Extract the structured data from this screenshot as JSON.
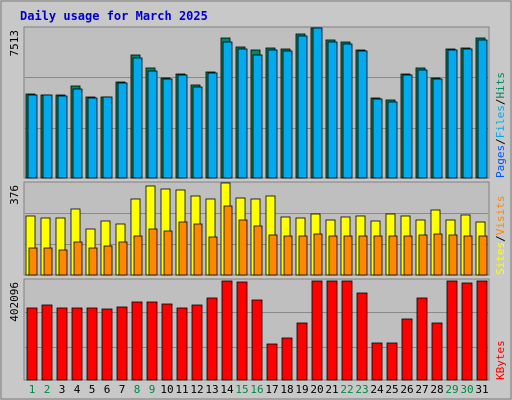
{
  "title": "Daily usage for March 2025",
  "colors": {
    "pages": "#0055ff",
    "files": "#00aaee",
    "hits": "#008866",
    "visits": "#ff8800",
    "sites": "#ffff00",
    "kbytes": "#ff0000",
    "title": "#0000cc",
    "weekday": "#000000",
    "weekend": "#008844",
    "panel": "#bfbfbf",
    "frame": "#d8d8d8"
  },
  "legend": {
    "top": {
      "pages": "Pages",
      "files": "Files",
      "hits": "Hits",
      "sep": "/"
    },
    "mid": {
      "sites": "Sites",
      "visits": "Visits",
      "sep": "/"
    },
    "bottom": {
      "kbytes": "KBytes"
    }
  },
  "chart_data": [
    {
      "type": "bar",
      "categories": [
        "1",
        "2",
        "3",
        "4",
        "5",
        "6",
        "7",
        "8",
        "9",
        "10",
        "11",
        "12",
        "13",
        "14",
        "15",
        "16",
        "17",
        "18",
        "19",
        "20",
        "21",
        "22",
        "23",
        "24",
        "25",
        "26",
        "27",
        "28",
        "29",
        "30",
        "31"
      ],
      "weekend_days": [
        "1",
        "2",
        "8",
        "9",
        "15",
        "16",
        "22",
        "23",
        "29",
        "30"
      ],
      "ymax": 7513,
      "ymax_label": "7513",
      "series": [
        {
          "name": "Hits",
          "values": [
            4200,
            4170,
            4140,
            4600,
            4050,
            4070,
            4800,
            6150,
            5520,
            5020,
            5220,
            4670,
            5300,
            7000,
            6580,
            6400,
            6500,
            6470,
            7200,
            7500,
            6900,
            6800,
            6400,
            4000,
            3900,
            5200,
            5500,
            5000,
            6470,
            6500,
            7000
          ]
        },
        {
          "name": "Files",
          "values": [
            4170,
            4150,
            4130,
            4450,
            3990,
            4050,
            4750,
            6000,
            5380,
            4950,
            5170,
            4580,
            5250,
            6800,
            6450,
            6180,
            6430,
            6380,
            7130,
            7513,
            6830,
            6700,
            6370,
            3950,
            3820,
            5150,
            5400,
            4950,
            6420,
            6470,
            6930
          ]
        },
        {
          "name": "Pages",
          "values": [
            4190,
            4160,
            4150,
            4500,
            4020,
            4080,
            4780,
            6100,
            5500,
            5000,
            5200,
            4650,
            5280,
            6950,
            6550,
            6350,
            6480,
            6450,
            7180,
            7480,
            6880,
            6780,
            6390,
            3980,
            3860,
            5180,
            5480,
            4980,
            6450,
            6480,
            6980
          ]
        }
      ]
    },
    {
      "type": "bar",
      "categories": [
        "1",
        "2",
        "3",
        "4",
        "5",
        "6",
        "7",
        "8",
        "9",
        "10",
        "11",
        "12",
        "13",
        "14",
        "15",
        "16",
        "17",
        "18",
        "19",
        "20",
        "21",
        "22",
        "23",
        "24",
        "25",
        "26",
        "27",
        "28",
        "29",
        "30",
        "31"
      ],
      "ymax": 376,
      "ymax_label": "376",
      "series": [
        {
          "name": "Visits",
          "values": [
            110,
            109,
            104,
            136,
            111,
            118,
            136,
            158,
            187,
            179,
            218,
            207,
            154,
            282,
            225,
            201,
            164,
            160,
            159,
            169,
            159,
            158,
            158,
            158,
            158,
            160,
            164,
            167,
            165,
            161,
            161
          ]
        },
        {
          "name": "Sites",
          "values": [
            240,
            234,
            234,
            271,
            186,
            219,
            210,
            309,
            363,
            353,
            347,
            321,
            310,
            376,
            313,
            311,
            324,
            238,
            232,
            250,
            224,
            239,
            243,
            222,
            248,
            241,
            223,
            266,
            224,
            245,
            216
          ]
        }
      ]
    },
    {
      "type": "bar",
      "categories": [
        "1",
        "2",
        "3",
        "4",
        "5",
        "6",
        "7",
        "8",
        "9",
        "10",
        "11",
        "12",
        "13",
        "14",
        "15",
        "16",
        "17",
        "18",
        "19",
        "20",
        "21",
        "22",
        "23",
        "24",
        "25",
        "26",
        "27",
        "28",
        "29",
        "30",
        "31"
      ],
      "ymax": 402096,
      "ymax_label": "402096",
      "series": [
        {
          "name": "KBytes",
          "values": [
            290000,
            300000,
            290000,
            290000,
            290000,
            285000,
            295000,
            315000,
            312000,
            305000,
            290000,
            300000,
            330000,
            400000,
            395000,
            320000,
            145000,
            170000,
            230000,
            400000,
            398000,
            400000,
            350000,
            150000,
            150000,
            245000,
            330000,
            230000,
            400000,
            390000,
            398000
          ]
        }
      ]
    }
  ]
}
